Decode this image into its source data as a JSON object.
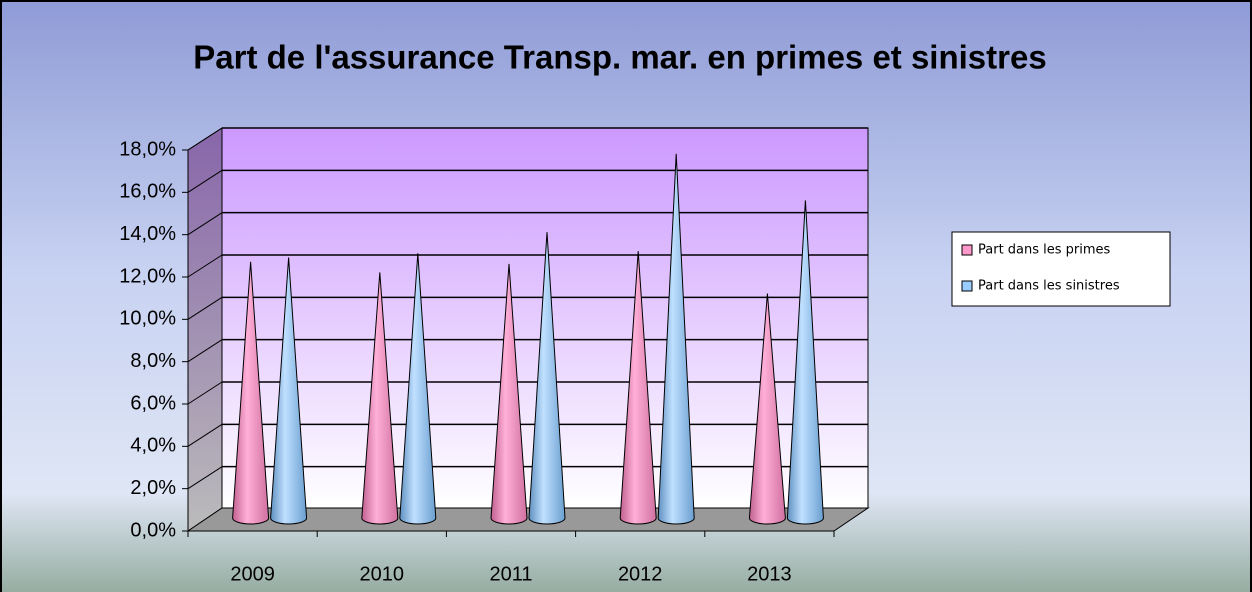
{
  "chart_data": {
    "type": "bar3d-cone",
    "title": "Part de l'assurance Transp. mar. en primes et sinistres",
    "categories": [
      "2009",
      "2010",
      "2011",
      "2012",
      "2013"
    ],
    "series": [
      {
        "name": "Part dans les primes",
        "color": "#ff99cc",
        "values": [
          12.2,
          11.7,
          12.1,
          12.7,
          10.7
        ]
      },
      {
        "name": "Part dans les sinistres",
        "color": "#99ccff",
        "values": [
          12.4,
          12.6,
          13.6,
          17.3,
          15.1
        ]
      }
    ],
    "ylim": [
      0,
      18
    ],
    "yticks": [
      {
        "value": 0,
        "label": "0,0%"
      },
      {
        "value": 2,
        "label": "2,0%"
      },
      {
        "value": 4,
        "label": "4,0%"
      },
      {
        "value": 6,
        "label": "6,0%"
      },
      {
        "value": 8,
        "label": "8,0%"
      },
      {
        "value": 10,
        "label": "10,0%"
      },
      {
        "value": 12,
        "label": "12,0%"
      },
      {
        "value": 14,
        "label": "14,0%"
      },
      {
        "value": 16,
        "label": "16,0%"
      },
      {
        "value": 18,
        "label": "18,0%"
      }
    ],
    "grid": true,
    "legend": "right"
  }
}
